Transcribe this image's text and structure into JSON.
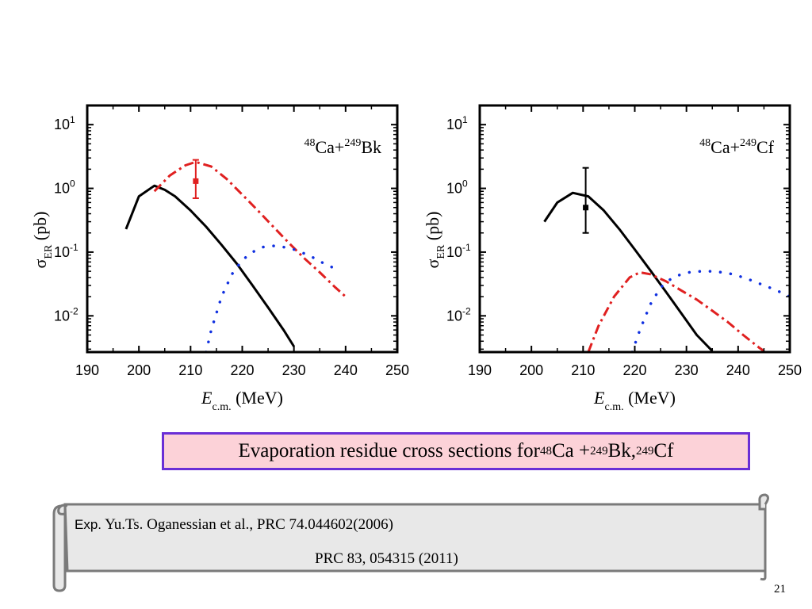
{
  "chart_data": [
    {
      "type": "line",
      "title": "",
      "annotation": {
        "a1": "48",
        "n1": "Ca+",
        "a2": "249",
        "n2": "Bk"
      },
      "xlabel": {
        "symbol": "E",
        "sub": "c.m.",
        "unit": " (MeV)"
      },
      "ylabel": {
        "symbol": "σ",
        "sub": "ER",
        "unit": " (pb)"
      },
      "log_y": true,
      "xlim": [
        190,
        250
      ],
      "ylim": [
        0.0027,
        20
      ],
      "x_ticks": [
        190,
        200,
        210,
        220,
        230,
        240,
        250
      ],
      "x_tick_labels": [
        "190",
        "200",
        "210",
        "220",
        "230",
        "240",
        "250"
      ],
      "y_ticks": [
        {
          "base": "10",
          "exp": "-2",
          "value": 0.01
        },
        {
          "base": "10",
          "exp": "-1",
          "value": 0.1
        },
        {
          "base": "10",
          "exp": "0",
          "value": 1
        },
        {
          "base": "10",
          "exp": "1",
          "value": 10
        }
      ],
      "grid": false,
      "series": [
        {
          "style": "solid",
          "color": "#000000",
          "x": [
            197.5,
            200,
            203,
            205,
            207,
            210,
            213,
            216,
            219,
            222,
            225,
            228,
            230
          ],
          "y": [
            0.23,
            0.75,
            1.1,
            0.95,
            0.75,
            0.45,
            0.25,
            0.13,
            0.065,
            0.03,
            0.0135,
            0.006,
            0.0033
          ]
        },
        {
          "style": "dashdot",
          "color": "#e02020",
          "x": [
            203,
            206,
            209,
            211,
            214,
            217,
            220,
            223,
            226,
            229,
            232,
            235,
            238,
            240
          ],
          "y": [
            0.9,
            1.6,
            2.3,
            2.6,
            2.2,
            1.4,
            0.8,
            0.45,
            0.25,
            0.14,
            0.08,
            0.048,
            0.028,
            0.02
          ]
        },
        {
          "style": "dotted",
          "color": "#1030e0",
          "x": [
            213,
            214,
            216,
            218,
            220,
            222,
            224,
            226,
            228,
            230,
            232,
            234,
            236,
            238,
            239
          ],
          "y": [
            0.0027,
            0.006,
            0.02,
            0.045,
            0.075,
            0.1,
            0.12,
            0.125,
            0.12,
            0.11,
            0.095,
            0.08,
            0.065,
            0.055,
            0.05
          ]
        }
      ],
      "data_points": [
        {
          "x": 211,
          "y": 1.3,
          "err_low": 0.7,
          "err_high": 2.8,
          "color": "#e02020"
        }
      ]
    },
    {
      "type": "line",
      "title": "",
      "annotation": {
        "a1": "48",
        "n1": "Ca+",
        "a2": "249",
        "n2": "Cf"
      },
      "xlabel": {
        "symbol": "E",
        "sub": "c.m.",
        "unit": " (MeV)"
      },
      "ylabel": {
        "symbol": "σ",
        "sub": "ER",
        "unit": " (pb)"
      },
      "log_y": true,
      "xlim": [
        190,
        250
      ],
      "ylim": [
        0.0027,
        20
      ],
      "x_ticks": [
        190,
        200,
        210,
        220,
        230,
        240,
        250
      ],
      "x_tick_labels": [
        "190",
        "200",
        "210",
        "220",
        "230",
        "240",
        "250"
      ],
      "y_ticks": [
        {
          "base": "10",
          "exp": "-2",
          "value": 0.01
        },
        {
          "base": "10",
          "exp": "-1",
          "value": 0.1
        },
        {
          "base": "10",
          "exp": "0",
          "value": 1
        },
        {
          "base": "10",
          "exp": "1",
          "value": 10
        }
      ],
      "grid": false,
      "series": [
        {
          "style": "solid",
          "color": "#000000",
          "x": [
            202.5,
            205,
            208,
            211,
            214,
            217,
            220,
            223,
            226,
            229,
            232,
            235
          ],
          "y": [
            0.3,
            0.6,
            0.85,
            0.75,
            0.45,
            0.23,
            0.11,
            0.052,
            0.024,
            0.011,
            0.005,
            0.0028
          ]
        },
        {
          "style": "dashdot",
          "color": "#e02020",
          "x": [
            211,
            213,
            216,
            219,
            221,
            223,
            226,
            229,
            232,
            235,
            238,
            241,
            244,
            245
          ],
          "y": [
            0.0027,
            0.007,
            0.02,
            0.04,
            0.048,
            0.045,
            0.035,
            0.025,
            0.018,
            0.012,
            0.008,
            0.005,
            0.0032,
            0.0028
          ]
        },
        {
          "style": "dotted",
          "color": "#1030e0",
          "x": [
            219.5,
            221,
            223,
            225,
            227,
            229,
            231,
            233,
            235,
            237,
            239,
            241,
            243,
            245,
            247,
            250
          ],
          "y": [
            0.0027,
            0.006,
            0.015,
            0.028,
            0.038,
            0.045,
            0.049,
            0.05,
            0.05,
            0.048,
            0.045,
            0.04,
            0.035,
            0.03,
            0.026,
            0.02
          ]
        }
      ],
      "data_points": [
        {
          "x": 210.5,
          "y": 0.5,
          "err_low": 0.2,
          "err_high": 2.1,
          "color": "#000000"
        }
      ]
    }
  ],
  "caption": {
    "prefix": "Evaporation residue cross sections for ",
    "mass1": "48",
    "elem1": "Ca +",
    "mass2": "249",
    "elem2": "Bk, ",
    "mass3": "249",
    "elem3": "Cf"
  },
  "reference": {
    "label": "Exp.",
    "line1": " Yu.Ts. Oganessian  et al., PRC 74.044602(2006)",
    "line2": "PRC 83, 054315 (2011)"
  },
  "page_number": "21",
  "colors": {
    "caption_border": "#6a2fd6",
    "caption_fill": "#fcd2d8",
    "scroll_fill": "#e8e8e8",
    "scroll_stroke": "#7a7a7a"
  }
}
